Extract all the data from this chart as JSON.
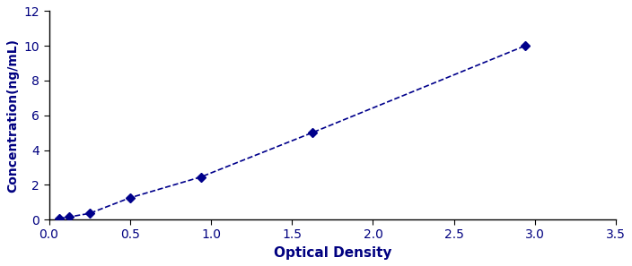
{
  "x_data": [
    0.062,
    0.125,
    0.25,
    0.5,
    0.938,
    1.625,
    2.938
  ],
  "y_data": [
    0.062,
    0.15,
    0.35,
    1.25,
    2.45,
    5.0,
    10.0
  ],
  "line_color": "#00008B",
  "marker_color": "#00008B",
  "marker_style": "D",
  "marker_size": 5,
  "line_width": 1.2,
  "line_style": "--",
  "xlabel": "Optical Density",
  "ylabel": "Concentration(ng/mL)",
  "xlim": [
    0,
    3.5
  ],
  "ylim": [
    0,
    12
  ],
  "xticks": [
    0,
    0.5,
    1.0,
    1.5,
    2.0,
    2.5,
    3.0,
    3.5
  ],
  "yticks": [
    0,
    2,
    4,
    6,
    8,
    10,
    12
  ],
  "xlabel_fontsize": 11,
  "ylabel_fontsize": 10,
  "tick_fontsize": 10,
  "background_color": "#ffffff",
  "border_color": "#000000"
}
